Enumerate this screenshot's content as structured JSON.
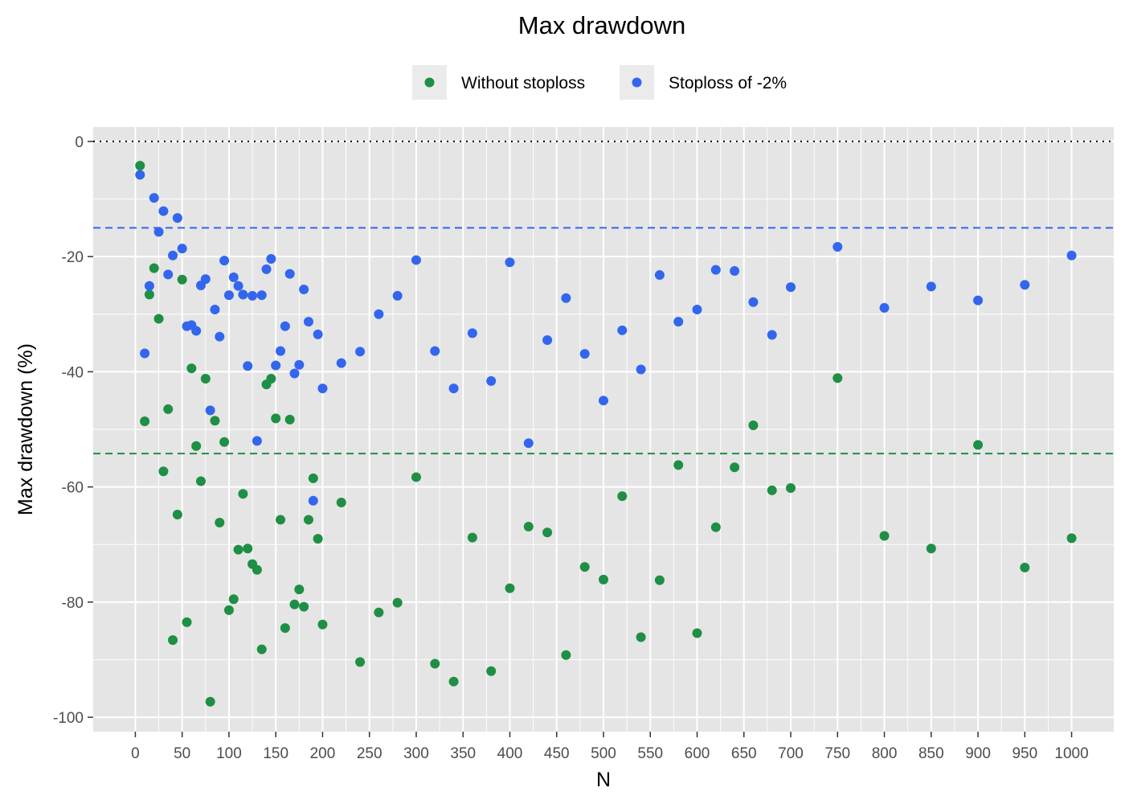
{
  "chart_data": {
    "type": "scatter",
    "title": "Max drawdown",
    "xlabel": "N",
    "ylabel": "Max drawdown (%)",
    "xlim": [
      -45,
      1045
    ],
    "ylim": [
      -102.5,
      2.5
    ],
    "x_ticks": [
      0,
      50,
      100,
      150,
      200,
      250,
      300,
      350,
      400,
      450,
      500,
      550,
      600,
      650,
      700,
      750,
      800,
      850,
      900,
      950,
      1000
    ],
    "x_tick_labels": [
      "0",
      "50",
      "100",
      "150",
      "200",
      "250",
      "300",
      "350",
      "400",
      "450",
      "500",
      "550",
      "600",
      "650",
      "700",
      "750",
      "800",
      "850",
      "900",
      "950",
      "1000"
    ],
    "y_ticks": [
      0,
      -20,
      -40,
      -60,
      -80,
      -100
    ],
    "y_tick_labels": [
      "0",
      "-20",
      "-40",
      "-60",
      "-80",
      "-100"
    ],
    "grid": true,
    "legend_position": "top",
    "reference_lines": [
      {
        "y": 0,
        "style": "dotted",
        "color": "#000000"
      },
      {
        "y": -15,
        "style": "dashed",
        "color": "#3366ee"
      },
      {
        "y": -54.2,
        "style": "dashed",
        "color": "#1e8f45"
      }
    ],
    "series": [
      {
        "name": "Without stoploss",
        "color": "#1e8f45",
        "points": [
          [
            5,
            -4.2
          ],
          [
            10,
            -48.6
          ],
          [
            15,
            -26.6
          ],
          [
            20,
            -22
          ],
          [
            25,
            -30.8
          ],
          [
            30,
            -57.3
          ],
          [
            35,
            -46.5
          ],
          [
            40,
            -86.6
          ],
          [
            45,
            -64.8
          ],
          [
            50,
            -24
          ],
          [
            55,
            -83.5
          ],
          [
            60,
            -39.4
          ],
          [
            65,
            -52.9
          ],
          [
            70,
            -59
          ],
          [
            75,
            -41.2
          ],
          [
            80,
            -97.3
          ],
          [
            85,
            -48.5
          ],
          [
            90,
            -66.2
          ],
          [
            95,
            -52.2
          ],
          [
            100,
            -81.4
          ],
          [
            105,
            -79.5
          ],
          [
            110,
            -70.9
          ],
          [
            115,
            -61.2
          ],
          [
            120,
            -70.7
          ],
          [
            125,
            -73.4
          ],
          [
            130,
            -74.4
          ],
          [
            135,
            -88.2
          ],
          [
            140,
            -42.2
          ],
          [
            145,
            -41.2
          ],
          [
            150,
            -48.1
          ],
          [
            155,
            -65.7
          ],
          [
            160,
            -84.5
          ],
          [
            165,
            -48.3
          ],
          [
            170,
            -80.4
          ],
          [
            175,
            -77.8
          ],
          [
            180,
            -80.8
          ],
          [
            185,
            -65.7
          ],
          [
            190,
            -58.5
          ],
          [
            195,
            -69
          ],
          [
            200,
            -83.9
          ],
          [
            220,
            -62.7
          ],
          [
            240,
            -90.4
          ],
          [
            260,
            -81.8
          ],
          [
            280,
            -80.1
          ],
          [
            300,
            -58.3
          ],
          [
            320,
            -90.7
          ],
          [
            340,
            -93.8
          ],
          [
            360,
            -68.8
          ],
          [
            380,
            -92
          ],
          [
            400,
            -77.6
          ],
          [
            420,
            -66.9
          ],
          [
            440,
            -67.9
          ],
          [
            460,
            -89.2
          ],
          [
            480,
            -73.9
          ],
          [
            500,
            -76.1
          ],
          [
            520,
            -61.6
          ],
          [
            540,
            -86.1
          ],
          [
            560,
            -76.2
          ],
          [
            580,
            -56.2
          ],
          [
            600,
            -85.4
          ],
          [
            620,
            -67
          ],
          [
            640,
            -56.6
          ],
          [
            660,
            -49.3
          ],
          [
            680,
            -60.6
          ],
          [
            700,
            -60.2
          ],
          [
            750,
            -41.1
          ],
          [
            800,
            -68.5
          ],
          [
            850,
            -70.7
          ],
          [
            900,
            -52.7
          ],
          [
            950,
            -74
          ],
          [
            1000,
            -68.9
          ]
        ]
      },
      {
        "name": "Stoploss of -2%",
        "color": "#3366ee",
        "points": [
          [
            5,
            -5.8
          ],
          [
            10,
            -36.8
          ],
          [
            15,
            -25.1
          ],
          [
            20,
            -9.8
          ],
          [
            25,
            -15.7
          ],
          [
            30,
            -12.1
          ],
          [
            35,
            -23.1
          ],
          [
            40,
            -19.8
          ],
          [
            45,
            -13.3
          ],
          [
            50,
            -18.6
          ],
          [
            55,
            -32.1
          ],
          [
            60,
            -31.9
          ],
          [
            65,
            -32.9
          ],
          [
            70,
            -25
          ],
          [
            75,
            -23.9
          ],
          [
            80,
            -46.7
          ],
          [
            85,
            -29.2
          ],
          [
            90,
            -33.9
          ],
          [
            95,
            -20.7
          ],
          [
            100,
            -26.7
          ],
          [
            105,
            -23.6
          ],
          [
            110,
            -25.1
          ],
          [
            115,
            -26.6
          ],
          [
            120,
            -39
          ],
          [
            125,
            -26.8
          ],
          [
            130,
            -52
          ],
          [
            135,
            -26.7
          ],
          [
            140,
            -22.2
          ],
          [
            145,
            -20.4
          ],
          [
            150,
            -38.9
          ],
          [
            155,
            -36.4
          ],
          [
            160,
            -32.1
          ],
          [
            165,
            -23
          ],
          [
            170,
            -40.3
          ],
          [
            175,
            -38.8
          ],
          [
            180,
            -25.7
          ],
          [
            185,
            -31.3
          ],
          [
            190,
            -62.4
          ],
          [
            195,
            -33.5
          ],
          [
            200,
            -42.9
          ],
          [
            220,
            -38.5
          ],
          [
            240,
            -36.5
          ],
          [
            260,
            -30
          ],
          [
            280,
            -26.8
          ],
          [
            300,
            -20.6
          ],
          [
            320,
            -36.4
          ],
          [
            340,
            -42.9
          ],
          [
            360,
            -33.3
          ],
          [
            380,
            -41.6
          ],
          [
            400,
            -21
          ],
          [
            420,
            -52.4
          ],
          [
            440,
            -34.5
          ],
          [
            460,
            -27.2
          ],
          [
            480,
            -36.9
          ],
          [
            500,
            -45
          ],
          [
            520,
            -32.8
          ],
          [
            540,
            -39.6
          ],
          [
            560,
            -23.2
          ],
          [
            580,
            -31.3
          ],
          [
            600,
            -29.2
          ],
          [
            620,
            -22.3
          ],
          [
            640,
            -22.5
          ],
          [
            660,
            -27.9
          ],
          [
            680,
            -33.6
          ],
          [
            700,
            -25.3
          ],
          [
            750,
            -18.3
          ],
          [
            800,
            -28.9
          ],
          [
            850,
            -25.2
          ],
          [
            900,
            -27.6
          ],
          [
            950,
            -24.9
          ],
          [
            1000,
            -19.8
          ]
        ]
      }
    ]
  },
  "colors": {
    "panel_background": "#e5e5e5",
    "grid_major": "#ffffff",
    "legend_key_background": "#ebebeb"
  }
}
